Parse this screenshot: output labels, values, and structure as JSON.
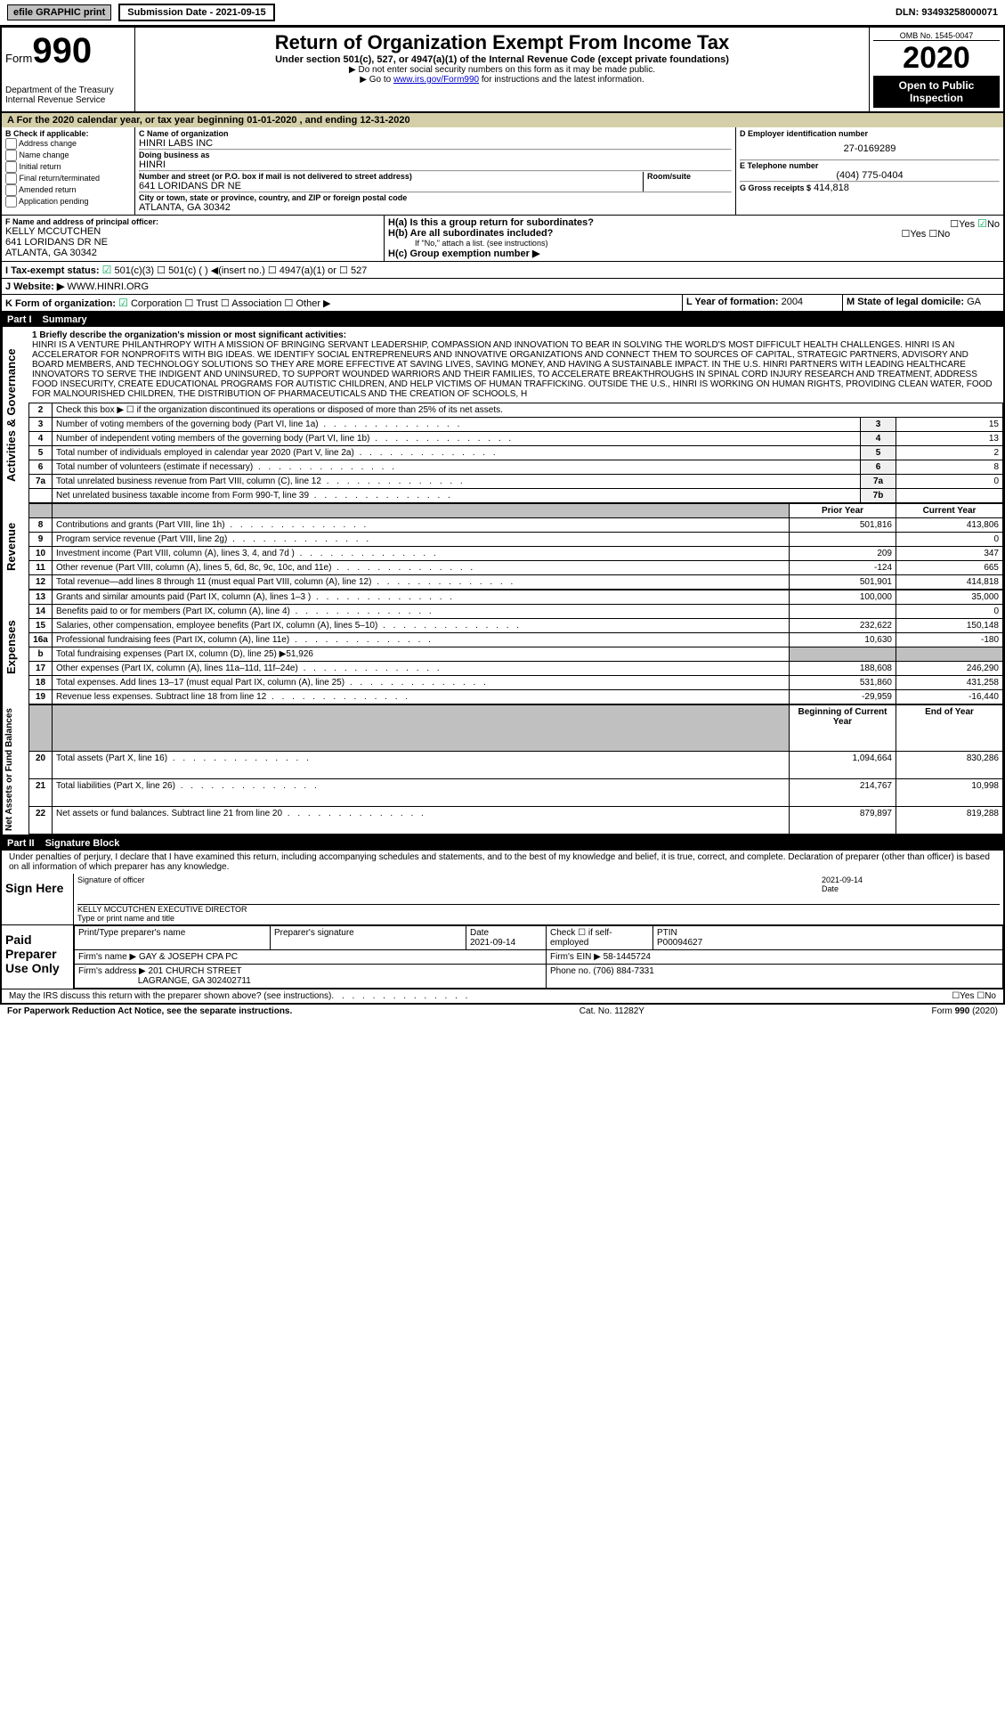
{
  "top": {
    "efile": "efile GRAPHIC print",
    "submission": "Submission Date - 2021-09-15",
    "dln": "DLN: 93493258000071"
  },
  "header": {
    "form_prefix": "Form",
    "form_no": "990",
    "dept": "Department of the Treasury\nInternal Revenue Service",
    "title": "Return of Organization Exempt From Income Tax",
    "subtitle": "Under section 501(c), 527, or 4947(a)(1) of the Internal Revenue Code (except private foundations)",
    "note1": "▶ Do not enter social security numbers on this form as it may be made public.",
    "note2_pre": "▶ Go to ",
    "note2_link": "www.irs.gov/Form990",
    "note2_post": " for instructions and the latest information.",
    "omb": "OMB No. 1545-0047",
    "year": "2020",
    "inspection": "Open to Public Inspection"
  },
  "calendar": "A For the 2020 calendar year, or tax year beginning 01-01-2020    , and ending 12-31-2020",
  "section_b": {
    "label": "B Check if applicable:",
    "items": [
      "Address change",
      "Name change",
      "Initial return",
      "Final return/terminated",
      "Amended return",
      "Application pending"
    ]
  },
  "section_c": {
    "name_label": "C Name of organization",
    "name": "HINRI LABS INC",
    "dba_label": "Doing business as",
    "dba": "HINRI",
    "street_label": "Number and street (or P.O. box if mail is not delivered to street address)",
    "street": "641 LORIDANS DR NE",
    "room_label": "Room/suite",
    "city_label": "City or town, state or province, country, and ZIP or foreign postal code",
    "city": "ATLANTA, GA  30342"
  },
  "section_d": {
    "ein_label": "D Employer identification number",
    "ein": "27-0169289",
    "phone_label": "E Telephone number",
    "phone": "(404) 775-0404",
    "gross_label": "G Gross receipts $",
    "gross": "414,818"
  },
  "section_f": {
    "label": "F  Name and address of principal officer:",
    "name": "KELLY MCCUTCHEN",
    "addr1": "641 LORIDANS DR NE",
    "addr2": "ATLANTA, GA  30342"
  },
  "section_h": {
    "ha_label": "H(a)  Is this a group return for subordinates?",
    "hb_label": "H(b)  Are all subordinates included?",
    "hb_note": "If \"No,\" attach a list. (see instructions)",
    "hc_label": "H(c)  Group exemption number ▶"
  },
  "tax_status": {
    "label": "I  Tax-exempt status:",
    "opt1": "501(c)(3)",
    "opt2": "501(c) (   ) ◀(insert no.)",
    "opt3": "4947(a)(1) or",
    "opt4": "527"
  },
  "website": {
    "label": "J  Website: ▶",
    "val": "WWW.HINRI.ORG"
  },
  "section_k": {
    "label": "K Form of organization:",
    "opts": [
      "Corporation",
      "Trust",
      "Association",
      "Other ▶"
    ]
  },
  "section_l": {
    "label": "L Year of formation:",
    "val": "2004"
  },
  "section_m": {
    "label": "M State of legal domicile:",
    "val": "GA"
  },
  "part1": {
    "num": "Part I",
    "title": "Summary"
  },
  "mission_label": "1   Briefly describe the organization's mission or most significant activities:",
  "mission": "HINRI IS A VENTURE PHILANTHROPY WITH A MISSION OF BRINGING SERVANT LEADERSHIP, COMPASSION AND INNOVATION TO BEAR IN SOLVING THE WORLD'S MOST DIFFICULT HEALTH CHALLENGES. HINRI IS AN ACCELERATOR FOR NONPROFITS WITH BIG IDEAS. WE IDENTIFY SOCIAL ENTREPRENEURS AND INNOVATIVE ORGANIZATIONS AND CONNECT THEM TO SOURCES OF CAPITAL, STRATEGIC PARTNERS, ADVISORY AND BOARD MEMBERS, AND TECHNOLOGY SOLUTIONS SO THEY ARE MORE EFFECTIVE AT SAVING LIVES, SAVING MONEY, AND HAVING A SUSTAINABLE IMPACT. IN THE U.S. HINRI PARTNERS WITH LEADING HEALTHCARE INNOVATORS TO SERVE THE INDIGENT AND UNINSURED, TO SUPPORT WOUNDED WARRIORS AND THEIR FAMILIES, TO ACCELERATE BREAKTHROUGHS IN SPINAL CORD INJURY RESEARCH AND TREATMENT, ADDRESS FOOD INSECURITY, CREATE EDUCATIONAL PROGRAMS FOR AUTISTIC CHILDREN, AND HELP VICTIMS OF HUMAN TRAFFICKING. OUTSIDE THE U.S., HINRI IS WORKING ON HUMAN RIGHTS, PROVIDING CLEAN WATER, FOOD FOR MALNOURISHED CHILDREN, THE DISTRIBUTION OF PHARMACEUTICALS AND THE CREATION OF SCHOOLS, H",
  "governance": {
    "side": "Activities & Governance",
    "lines": [
      {
        "n": "2",
        "d": "Check this box ▶ ☐ if the organization discontinued its operations or disposed of more than 25% of its net assets."
      },
      {
        "n": "3",
        "d": "Number of voting members of the governing body (Part VI, line 1a)",
        "ln": "3",
        "v": "15"
      },
      {
        "n": "4",
        "d": "Number of independent voting members of the governing body (Part VI, line 1b)",
        "ln": "4",
        "v": "13"
      },
      {
        "n": "5",
        "d": "Total number of individuals employed in calendar year 2020 (Part V, line 2a)",
        "ln": "5",
        "v": "2"
      },
      {
        "n": "6",
        "d": "Total number of volunteers (estimate if necessary)",
        "ln": "6",
        "v": "8"
      },
      {
        "n": "7a",
        "d": "Total unrelated business revenue from Part VIII, column (C), line 12",
        "ln": "7a",
        "v": "0"
      },
      {
        "n": "",
        "d": "Net unrelated business taxable income from Form 990-T, line 39",
        "ln": "7b",
        "v": ""
      }
    ]
  },
  "revenue": {
    "side": "Revenue",
    "hdr_prior": "Prior Year",
    "hdr_current": "Current Year",
    "lines": [
      {
        "n": "8",
        "d": "Contributions and grants (Part VIII, line 1h)",
        "p": "501,816",
        "c": "413,806"
      },
      {
        "n": "9",
        "d": "Program service revenue (Part VIII, line 2g)",
        "p": "",
        "c": "0"
      },
      {
        "n": "10",
        "d": "Investment income (Part VIII, column (A), lines 3, 4, and 7d )",
        "p": "209",
        "c": "347"
      },
      {
        "n": "11",
        "d": "Other revenue (Part VIII, column (A), lines 5, 6d, 8c, 9c, 10c, and 11e)",
        "p": "-124",
        "c": "665"
      },
      {
        "n": "12",
        "d": "Total revenue—add lines 8 through 11 (must equal Part VIII, column (A), line 12)",
        "p": "501,901",
        "c": "414,818"
      }
    ]
  },
  "expenses": {
    "side": "Expenses",
    "lines": [
      {
        "n": "13",
        "d": "Grants and similar amounts paid (Part IX, column (A), lines 1–3 )",
        "p": "100,000",
        "c": "35,000"
      },
      {
        "n": "14",
        "d": "Benefits paid to or for members (Part IX, column (A), line 4)",
        "p": "",
        "c": "0"
      },
      {
        "n": "15",
        "d": "Salaries, other compensation, employee benefits (Part IX, column (A), lines 5–10)",
        "p": "232,622",
        "c": "150,148"
      },
      {
        "n": "16a",
        "d": "Professional fundraising fees (Part IX, column (A), line 11e)",
        "p": "10,630",
        "c": "-180"
      },
      {
        "n": "b",
        "d": "Total fundraising expenses (Part IX, column (D), line 25) ▶51,926",
        "shaded": true
      },
      {
        "n": "17",
        "d": "Other expenses (Part IX, column (A), lines 11a–11d, 11f–24e)",
        "p": "188,608",
        "c": "246,290"
      },
      {
        "n": "18",
        "d": "Total expenses. Add lines 13–17 (must equal Part IX, column (A), line 25)",
        "p": "531,860",
        "c": "431,258"
      },
      {
        "n": "19",
        "d": "Revenue less expenses. Subtract line 18 from line 12",
        "p": "-29,959",
        "c": "-16,440"
      }
    ]
  },
  "netassets": {
    "side": "Net Assets or Fund Balances",
    "hdr_begin": "Beginning of Current Year",
    "hdr_end": "End of Year",
    "lines": [
      {
        "n": "20",
        "d": "Total assets (Part X, line 16)",
        "p": "1,094,664",
        "c": "830,286"
      },
      {
        "n": "21",
        "d": "Total liabilities (Part X, line 26)",
        "p": "214,767",
        "c": "10,998"
      },
      {
        "n": "22",
        "d": "Net assets or fund balances. Subtract line 21 from line 20",
        "p": "879,897",
        "c": "819,288"
      }
    ]
  },
  "part2": {
    "num": "Part II",
    "title": "Signature Block"
  },
  "penalties": "Under penalties of perjury, I declare that I have examined this return, including accompanying schedules and statements, and to the best of my knowledge and belief, it is true, correct, and complete. Declaration of preparer (other than officer) is based on all information of which preparer has any knowledge.",
  "sign": {
    "label": "Sign Here",
    "sig_label": "Signature of officer",
    "date": "2021-09-14",
    "date_label": "Date",
    "name": "KELLY MCCUTCHEN  EXECUTIVE DIRECTOR",
    "name_label": "Type or print name and title"
  },
  "preparer": {
    "label": "Paid Preparer Use Only",
    "print_label": "Print/Type preparer's name",
    "sig_label": "Preparer's signature",
    "date_label": "Date",
    "date": "2021-09-14",
    "check_label": "Check ☐ if self-employed",
    "ptin_label": "PTIN",
    "ptin": "P00094627",
    "firm_name_label": "Firm's name    ▶",
    "firm_name": "GAY & JOSEPH CPA PC",
    "firm_ein_label": "Firm's EIN ▶",
    "firm_ein": "58-1445724",
    "firm_addr_label": "Firm's address ▶",
    "firm_addr": "201 CHURCH STREET",
    "firm_addr2": "LAGRANGE, GA  302402711",
    "firm_phone_label": "Phone no.",
    "firm_phone": "(706) 884-7331"
  },
  "discuss": "May the IRS discuss this return with the preparer shown above? (see instructions)",
  "footer": {
    "left": "For Paperwork Reduction Act Notice, see the separate instructions.",
    "mid": "Cat. No. 11282Y",
    "right": "Form 990 (2020)"
  }
}
